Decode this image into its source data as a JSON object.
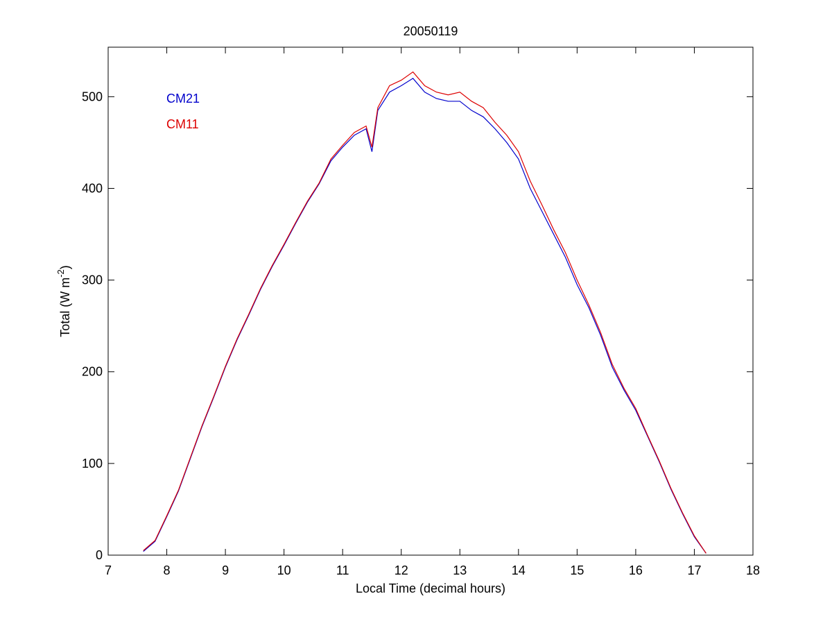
{
  "chart_data": {
    "type": "line",
    "title": "20050119",
    "x_label": "Local Time (decimal hours)",
    "y_label": "Total (W m",
    "y_label_sup": "-2",
    "y_label_end": ")",
    "x": [
      7.6,
      7.8,
      8.0,
      8.2,
      8.4,
      8.6,
      8.8,
      9.0,
      9.2,
      9.4,
      9.6,
      9.8,
      10.0,
      10.2,
      10.4,
      10.6,
      10.8,
      11.0,
      11.2,
      11.4,
      11.5,
      11.6,
      11.8,
      12.0,
      12.2,
      12.4,
      12.6,
      12.8,
      13.0,
      13.2,
      13.4,
      13.6,
      13.8,
      14.0,
      14.2,
      14.4,
      14.6,
      14.8,
      15.0,
      15.2,
      15.4,
      15.6,
      15.8,
      16.0,
      16.2,
      16.4,
      16.6,
      16.8,
      17.0,
      17.2
    ],
    "series": [
      {
        "name": "CM21",
        "color": "#0000cc",
        "values": [
          4,
          15,
          42,
          70,
          105,
          140,
          172,
          205,
          235,
          262,
          290,
          315,
          338,
          362,
          385,
          405,
          430,
          445,
          458,
          465,
          440,
          485,
          505,
          512,
          520,
          505,
          498,
          495,
          495,
          485,
          478,
          465,
          450,
          432,
          400,
          375,
          350,
          325,
          295,
          270,
          240,
          205,
          180,
          158,
          130,
          102,
          72,
          45,
          20,
          2
        ]
      },
      {
        "name": "CM11",
        "color": "#dd0000",
        "values": [
          5,
          16,
          43,
          71,
          106,
          141,
          173,
          206,
          236,
          263,
          291,
          316,
          339,
          363,
          386,
          406,
          432,
          447,
          461,
          468,
          445,
          488,
          512,
          518,
          527,
          512,
          505,
          502,
          505,
          495,
          488,
          472,
          458,
          440,
          408,
          382,
          355,
          330,
          300,
          273,
          243,
          208,
          182,
          160,
          131,
          103,
          73,
          46,
          21,
          2
        ]
      }
    ],
    "xlim": [
      7,
      18
    ],
    "xticks": [
      7,
      8,
      9,
      10,
      11,
      12,
      13,
      14,
      15,
      16,
      17,
      18
    ],
    "ylim": [
      0,
      554
    ],
    "yticks": [
      0,
      100,
      200,
      300,
      400,
      500
    ]
  }
}
